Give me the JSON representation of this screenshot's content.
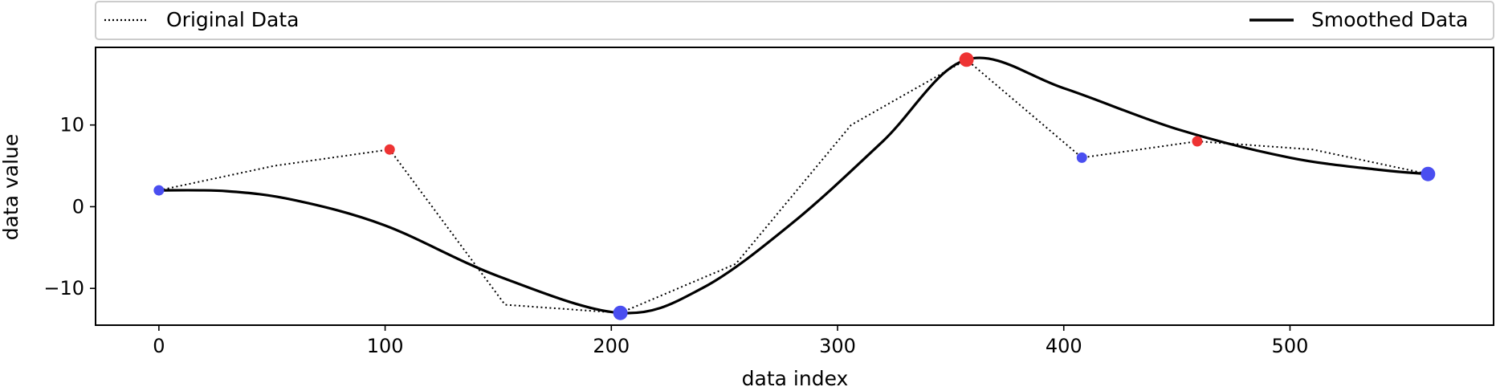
{
  "chart_data": {
    "type": "line",
    "xlabel": "data index",
    "ylabel": "data value",
    "xlim": [
      -28,
      590
    ],
    "ylim": [
      -14.5,
      19.5
    ],
    "x_ticks": [
      0,
      100,
      200,
      300,
      400,
      500
    ],
    "y_ticks": [
      -10,
      0,
      10
    ],
    "legend_position": "top",
    "grid": false,
    "series": [
      {
        "name": "Original Data",
        "style": "dotted",
        "color": "#000000",
        "x": [
          0,
          51,
          102,
          153,
          204,
          255,
          306,
          357,
          408,
          459,
          510,
          561
        ],
        "y": [
          2,
          5,
          7,
          -12,
          -13,
          -7,
          10,
          18,
          6,
          8,
          7,
          4
        ]
      },
      {
        "name": "Smoothed Data",
        "style": "solid",
        "color": "#000000",
        "x": [
          0,
          30,
          60,
          100,
          150,
          204,
          240,
          280,
          320,
          357,
          400,
          450,
          500,
          540,
          561
        ],
        "y": [
          2,
          1.9,
          0.8,
          -2.3,
          -8.5,
          -13,
          -10,
          -2,
          8,
          18,
          14.5,
          9.5,
          6,
          4.5,
          4
        ]
      }
    ],
    "markers": {
      "maxima": {
        "color": "#ee3333",
        "points": [
          {
            "x": 102,
            "y": 7,
            "size": "small"
          },
          {
            "x": 357,
            "y": 18,
            "size": "large"
          },
          {
            "x": 459,
            "y": 8,
            "size": "small"
          }
        ]
      },
      "minima": {
        "color": "#4a4ef0",
        "points": [
          {
            "x": 0,
            "y": 2,
            "size": "small"
          },
          {
            "x": 204,
            "y": -13,
            "size": "large"
          },
          {
            "x": 408,
            "y": 6,
            "size": "small"
          },
          {
            "x": 561,
            "y": 4,
            "size": "large"
          }
        ]
      }
    }
  }
}
